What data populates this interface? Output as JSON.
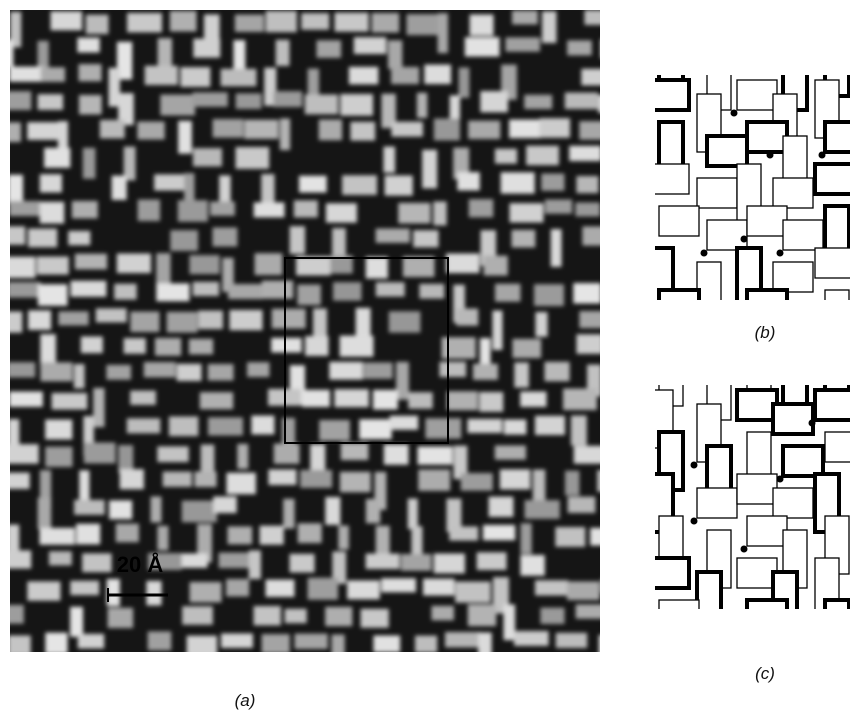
{
  "panel_a": {
    "label": "(a)",
    "scale_bar_label": "20 Å"
  },
  "panel_b": {
    "label": "(b)"
  },
  "panel_c": {
    "label": "(c)"
  }
}
